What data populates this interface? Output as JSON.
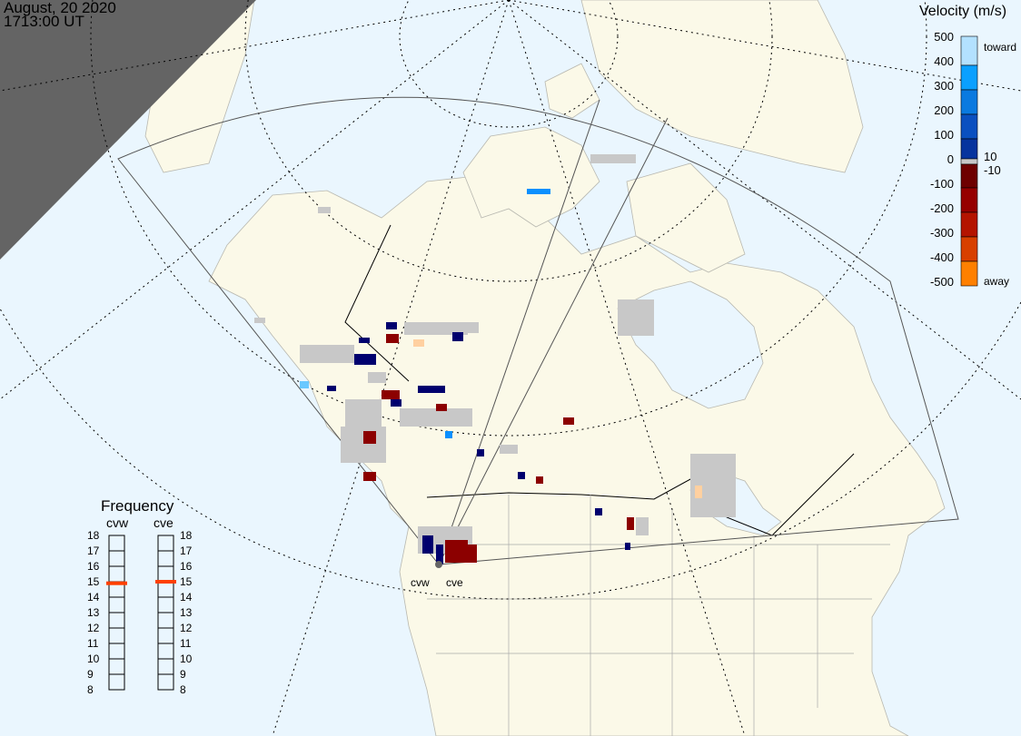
{
  "header": {
    "date": "August, 20 2020",
    "time": "1713:00 UT"
  },
  "colorbar": {
    "title": "Velocity (m/s)",
    "ticks": [
      "500",
      "400",
      "300",
      "200",
      "100",
      "0",
      "-100",
      "-200",
      "-300",
      "-400",
      "-500"
    ],
    "inner_labels": [
      "10",
      "-10"
    ],
    "toward_label": "toward",
    "away_label": "away",
    "colors": [
      "#b3e1ff",
      "#0aa0ff",
      "#0a7ae0",
      "#0a50c0",
      "#06349e",
      "#00006e",
      "#c8c8c8",
      "#6e0000",
      "#960000",
      "#b41400",
      "#d84000",
      "#ff8000",
      "#ffd0a0"
    ]
  },
  "frequency": {
    "title": "Frequency",
    "ticks": [
      "18",
      "17",
      "16",
      "15",
      "14",
      "13",
      "12",
      "11",
      "10",
      "9",
      "8"
    ],
    "radars": [
      {
        "name": "cvw",
        "value_mhz": 14.9
      },
      {
        "name": "cve",
        "value_mhz": 15.0
      }
    ],
    "marker_color": "#ff4000"
  },
  "sites": [
    "cvw",
    "cve"
  ],
  "colors": {
    "land": "#fbf9e8",
    "ocean": "#eaf6fe",
    "night": "#646464",
    "ground_scatter": "#c8c8c8"
  }
}
